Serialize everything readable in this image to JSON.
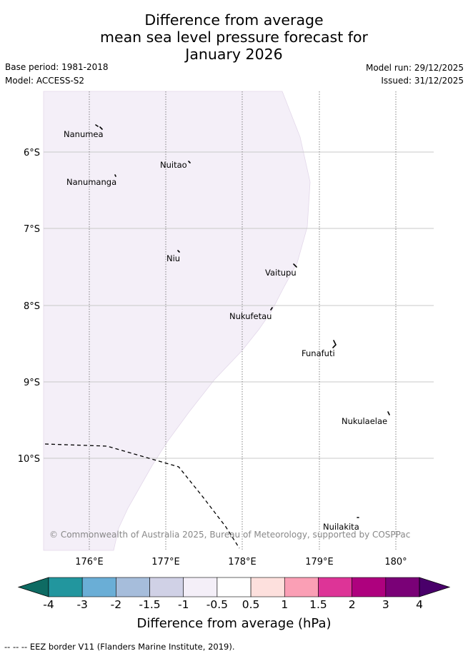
{
  "header": {
    "title_lines": [
      "Difference from average",
      "mean sea level pressure forecast for",
      "January 2026"
    ],
    "base_period": "Base period: 1981-2018",
    "model": "Model: ACCESS-S2",
    "model_run": "Model run: 29/12/2025",
    "issued": "Issued: 31/12/2025"
  },
  "map": {
    "lat_labels": [
      "6°S",
      "7°S",
      "8°S",
      "9°S",
      "10°S"
    ],
    "lon_labels": [
      "176°E",
      "177°E",
      "178°E",
      "179°E",
      "180°"
    ],
    "places": [
      {
        "name": "Nanumea"
      },
      {
        "name": "Nuitao"
      },
      {
        "name": "Nanumanga"
      },
      {
        "name": "Niu"
      },
      {
        "name": "Vaitupu"
      },
      {
        "name": "Nukufetau"
      },
      {
        "name": "Funafuti"
      },
      {
        "name": "Nukulaelae"
      },
      {
        "name": "Nuilakita"
      }
    ],
    "credit": "© Commonwealth of Australia 2025, Bureau of Meteorology, supported by COSPPac",
    "shaded_category": "-1 to -0.5 hPa"
  },
  "colorbar": {
    "ticks": [
      "-4",
      "-3",
      "-2",
      "-1.5",
      "-1",
      "-0.5",
      "0.5",
      "1",
      "1.5",
      "2",
      "3",
      "4"
    ],
    "colors": [
      "#0e6b63",
      "#22969e",
      "#6aaed6",
      "#a6bddb",
      "#d0d1e6",
      "#f4eff8",
      "#ffffff",
      "#fde0dd",
      "#fa9fb5",
      "#dd3497",
      "#ae017e",
      "#7a0177",
      "#49006a"
    ],
    "label": "Difference from average (hPa)"
  },
  "footnote": "--  --  -- EEZ border V11 (Flanders Marine Institute, 2019)."
}
